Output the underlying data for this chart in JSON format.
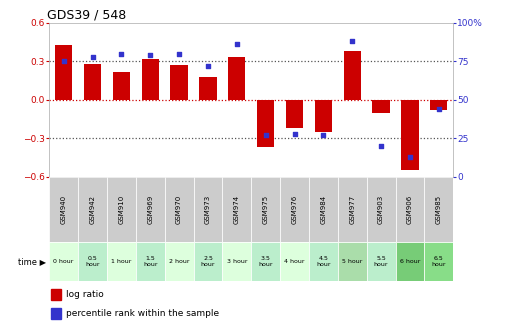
{
  "title": "GDS39 / 548",
  "samples": [
    "GSM940",
    "GSM942",
    "GSM910",
    "GSM969",
    "GSM970",
    "GSM973",
    "GSM974",
    "GSM975",
    "GSM976",
    "GSM984",
    "GSM977",
    "GSM903",
    "GSM906",
    "GSM985"
  ],
  "time_labels": [
    "0 hour",
    "0.5\nhour",
    "1 hour",
    "1.5\nhour",
    "2 hour",
    "2.5\nhour",
    "3 hour",
    "3.5\nhour",
    "4 hour",
    "4.5\nhour",
    "5 hour",
    "5.5\nhour",
    "6 hour",
    "6.5\nhour"
  ],
  "log_ratio": [
    0.43,
    0.28,
    0.22,
    0.32,
    0.27,
    0.18,
    0.33,
    -0.37,
    -0.22,
    -0.25,
    0.38,
    -0.1,
    -0.55,
    -0.08
  ],
  "percentile": [
    75,
    78,
    80,
    79,
    80,
    72,
    86,
    27,
    28,
    27,
    88,
    20,
    13,
    44
  ],
  "ylim": [
    -0.6,
    0.6
  ],
  "ylim_right": [
    0,
    100
  ],
  "bar_color": "#cc0000",
  "dot_color": "#3333cc",
  "dotted_color": "#555555",
  "zero_line_color": "#cc0000",
  "left_tick_color": "#cc0000",
  "right_tick_color": "#3333cc",
  "time_bg_colors": [
    "#ccffcc",
    "#aaddaa",
    "#ccffcc",
    "#aaddaa",
    "#ccffcc",
    "#aaddaa",
    "#ccffcc",
    "#aaddaa",
    "#ccffcc",
    "#aaddaa",
    "#99dd99",
    "#aaddaa",
    "#66cc66",
    "#77dd77"
  ],
  "sample_bg": "#cccccc",
  "legend_red": "#cc0000",
  "legend_blue": "#3333cc",
  "bar_width": 0.6
}
